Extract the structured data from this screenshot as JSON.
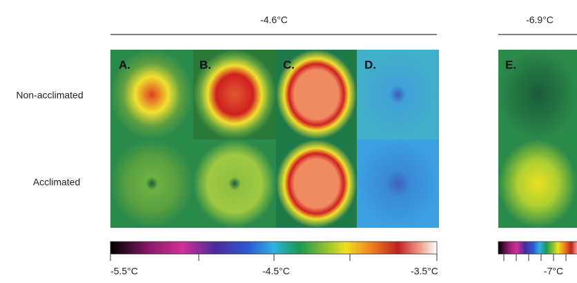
{
  "header": {
    "left": "-4.6°C",
    "right": "-6.9°C"
  },
  "rows": [
    "Non-acclimated",
    "Acclimated"
  ],
  "panels": [
    "A.",
    "B.",
    "C.",
    "D.",
    "E."
  ],
  "colorbar_left": [
    "-5.5°C",
    "-4.5°C",
    "-3.5°C"
  ],
  "colorbar_right": [
    "-7°C"
  ]
}
